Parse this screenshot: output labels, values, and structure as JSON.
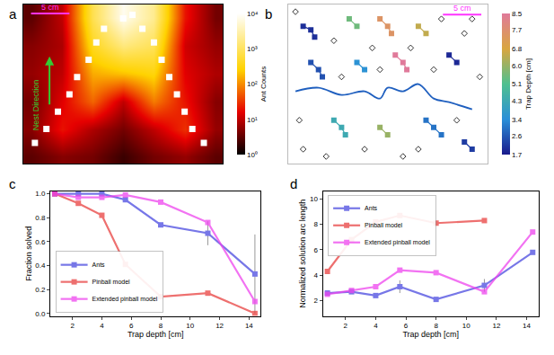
{
  "chart_data": [
    {
      "label": "a",
      "type": "heatmap",
      "tick_labels": false,
      "log": true,
      "xlim": [
        -13,
        13
      ],
      "ylim": [
        0,
        23
      ],
      "x": [
        -12,
        -8,
        -4,
        0,
        4,
        8,
        12
      ],
      "y": [
        1,
        5,
        9,
        13,
        17,
        21
      ],
      "cells": [
        [
          3,
          5,
          4,
          2,
          4,
          6,
          3
        ],
        [
          5,
          20,
          8,
          4,
          10,
          30,
          6
        ],
        [
          4,
          15,
          60,
          10,
          80,
          20,
          5
        ],
        [
          6,
          10,
          150,
          200,
          300,
          15,
          8
        ],
        [
          5,
          8,
          400,
          1500,
          900,
          12,
          6
        ],
        [
          3,
          10,
          800,
          8000,
          2000,
          20,
          4
        ]
      ],
      "colorbar_title": "Ant Counts",
      "colorbar_range": [
        1,
        10000
      ],
      "colorbar_ticks": [
        {
          "value": 1,
          "label": "10⁰"
        },
        {
          "value": 10,
          "label": "10¹"
        },
        {
          "value": 100,
          "label": "10²"
        },
        {
          "value": 1000,
          "label": "10³"
        },
        {
          "value": 10000,
          "label": "10⁴"
        }
      ],
      "traps": {
        "x": [
          0,
          1.2,
          -2.5,
          -3.5,
          -4.5,
          -6,
          -7,
          -8.5,
          -10,
          -11.5,
          2.5,
          4,
          5,
          6,
          7,
          8,
          9,
          10.5
        ],
        "y": [
          21,
          21.5,
          19.5,
          17.5,
          15,
          12.5,
          10,
          7.5,
          5,
          3,
          19.5,
          17.5,
          15,
          12.5,
          10,
          7.5,
          5,
          3
        ]
      },
      "scale_bar": {
        "label": "5 cm",
        "length": 5,
        "color": "#ff33ff"
      },
      "annotations": [
        {
          "text": "Nest Direction",
          "color": "#33cc33"
        }
      ]
    },
    {
      "label": "b",
      "type": "scatter",
      "tick_labels": false,
      "xlim": [
        0,
        26
      ],
      "ylim": [
        0,
        22
      ],
      "traps": [
        {
          "depth": 2.0,
          "x": [
            2,
            3,
            3.5
          ],
          "y": [
            19,
            18.5,
            17.5
          ]
        },
        {
          "depth": 5.5,
          "x": [
            8,
            9
          ],
          "y": [
            20,
            19
          ]
        },
        {
          "depth": 7.5,
          "x": [
            12,
            13,
            13.5
          ],
          "y": [
            20,
            19,
            18
          ]
        },
        {
          "depth": 6.5,
          "x": [
            17,
            18
          ],
          "y": [
            19,
            18
          ]
        },
        {
          "depth": 2.5,
          "x": [
            3,
            4,
            4.5
          ],
          "y": [
            14,
            13,
            12
          ]
        },
        {
          "depth": 3.5,
          "x": [
            9,
            10
          ],
          "y": [
            14,
            13
          ]
        },
        {
          "depth": 8.5,
          "x": [
            14,
            15,
            15.5
          ],
          "y": [
            15,
            14,
            13
          ]
        },
        {
          "depth": 1.9,
          "x": [
            21,
            22
          ],
          "y": [
            15,
            14
          ]
        },
        {
          "depth": 4.3,
          "x": [
            6,
            7,
            7.5
          ],
          "y": [
            6,
            5,
            4
          ]
        },
        {
          "depth": 6.0,
          "x": [
            12,
            13
          ],
          "y": [
            5,
            4
          ]
        },
        {
          "depth": 3.0,
          "x": [
            18,
            19,
            20
          ],
          "y": [
            6,
            5,
            4
          ]
        },
        {
          "depth": 2.2,
          "x": [
            23,
            24
          ],
          "y": [
            3,
            2
          ]
        }
      ],
      "empty_traps": {
        "x": [
          1,
          6,
          11,
          16,
          20,
          24,
          1.5,
          7,
          12,
          19,
          25,
          2,
          10,
          15,
          22,
          5,
          17,
          23
        ],
        "y": [
          21,
          17,
          16,
          16,
          20,
          20,
          6,
          12,
          13,
          13,
          12,
          2,
          2,
          1,
          6,
          1,
          2,
          18
        ]
      },
      "path": {
        "x": [
          1,
          4,
          7,
          10,
          12,
          13,
          15,
          17,
          19,
          21,
          24
        ],
        "y": [
          10,
          10.5,
          9.5,
          10,
          9,
          10.5,
          10,
          11,
          9,
          8.5,
          7.5
        ],
        "color": "#1f5fbf"
      },
      "colorbar_title": "Trap Depth [cm]",
      "colorbar_range": [
        1.7,
        8.5
      ],
      "colorbar_ticks": [
        1.7,
        2.6,
        3.4,
        4.3,
        5.1,
        {
          "value": 6.0,
          "label": "6.0"
        },
        6.8,
        7.7,
        8.5
      ],
      "scale_bar": {
        "label": "5 cm",
        "length": 5,
        "color": "#ff33ff"
      }
    },
    {
      "label": "c",
      "type": "line",
      "grid": false,
      "legend": "lower left",
      "x_label": "Trap depth [cm]",
      "y_label": "Fraction solved",
      "xlim": [
        0.5,
        14.8
      ],
      "xticks": [
        2,
        4,
        6,
        8,
        10,
        12,
        14
      ],
      "ylim": [
        -0.02,
        1.02
      ],
      "yticks": [
        {
          "value": 0,
          "label": "0.0"
        },
        0.2,
        0.4,
        0.6,
        0.8,
        {
          "value": 1,
          "label": "1.0"
        }
      ],
      "x": [
        0.8,
        2.4,
        4,
        5.6,
        8,
        11.2,
        14.4
      ],
      "series": [
        {
          "name": "Ants",
          "color": "#4a4ae0",
          "marker": "square",
          "values": [
            1.0,
            1.0,
            1.0,
            0.95,
            0.74,
            0.67,
            0.33
          ],
          "errors": [
            0,
            0,
            0,
            0,
            0,
            0.1,
            0.33
          ]
        },
        {
          "name": "Pinball model",
          "color": "#e8403f",
          "marker": "square",
          "values": [
            1.0,
            0.92,
            0.82,
            0.41,
            0.14,
            0.17,
            0.0
          ]
        },
        {
          "name": "Extended pinball model",
          "color": "#ee44ee",
          "marker": "square",
          "values": [
            1.0,
            0.97,
            0.97,
            0.99,
            0.93,
            0.76,
            0.1
          ]
        }
      ]
    },
    {
      "label": "d",
      "type": "line",
      "grid": false,
      "legend": "upper left",
      "x_label": "Trap depth [cm]",
      "y_label": "Normalized solution arc length",
      "xlim": [
        0.5,
        14.8
      ],
      "xticks": [
        2,
        4,
        6,
        8,
        10,
        12,
        14
      ],
      "ylim": [
        0.8,
        10.6
      ],
      "yticks": [
        2,
        4,
        6,
        8,
        10
      ],
      "x": [
        0.8,
        2.4,
        4,
        5.6,
        8,
        11.2,
        14.4
      ],
      "series": [
        {
          "name": "Ants",
          "color": "#4a4ae0",
          "marker": "square",
          "values": [
            2.6,
            2.7,
            2.4,
            3.1,
            2.1,
            3.2,
            5.8
          ],
          "errors": [
            0,
            0,
            0,
            0.5,
            0,
            0.5,
            0
          ]
        },
        {
          "name": "Pinball model",
          "color": "#e8403f",
          "marker": "square",
          "values": [
            4.3,
            6.8,
            8.2,
            8.7,
            8.1,
            8.3,
            null
          ]
        },
        {
          "name": "Extended pinball model",
          "color": "#ee44ee",
          "marker": "square",
          "values": [
            2.5,
            2.8,
            3.1,
            4.4,
            4.2,
            2.7,
            7.4
          ]
        }
      ]
    }
  ]
}
